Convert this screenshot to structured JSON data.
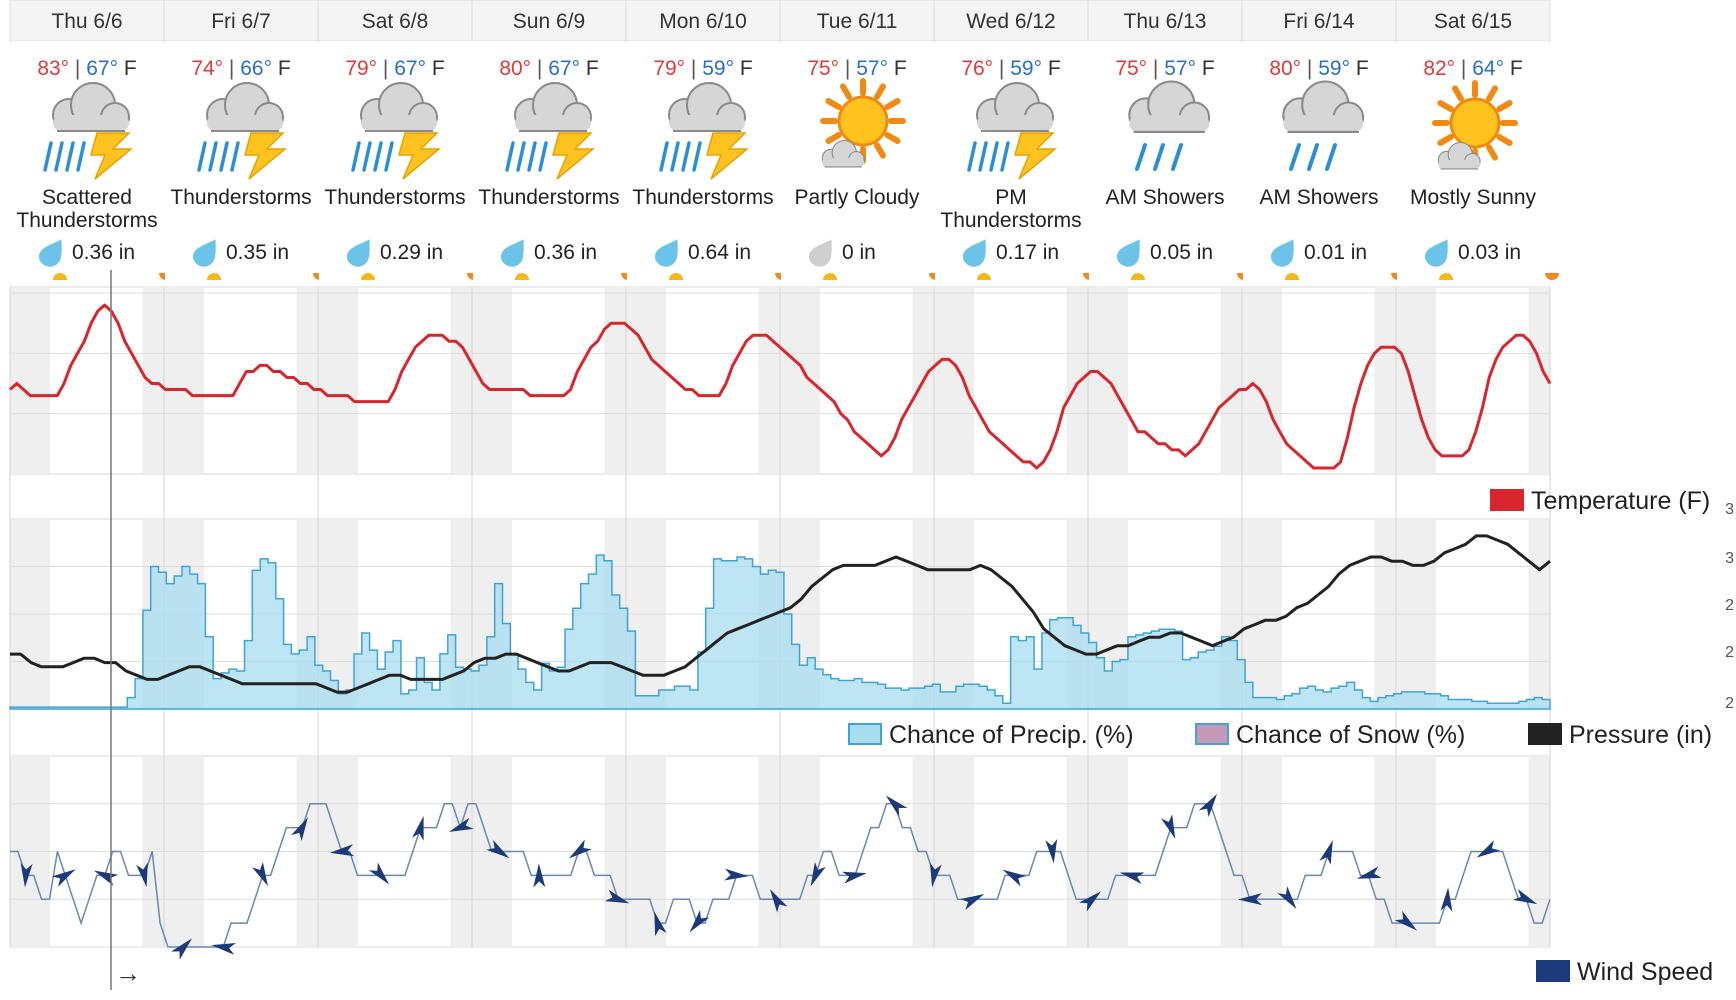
{
  "days": [
    {
      "label": "Thu 6/6",
      "hi": "83°",
      "lo": "67°",
      "unit": "F",
      "cond": [
        "Scattered",
        "Thunderstorms"
      ],
      "icon": "thunderstorm-icon",
      "precip": "0.36 in",
      "drop": "blue"
    },
    {
      "label": "Fri 6/7",
      "hi": "74°",
      "lo": "66°",
      "unit": "F",
      "cond": [
        "Thunderstorms"
      ],
      "icon": "thunderstorm-icon",
      "precip": "0.35 in",
      "drop": "blue"
    },
    {
      "label": "Sat 6/8",
      "hi": "79°",
      "lo": "67°",
      "unit": "F",
      "cond": [
        "Thunderstorms"
      ],
      "icon": "thunderstorm-icon",
      "precip": "0.29 in",
      "drop": "blue"
    },
    {
      "label": "Sun 6/9",
      "hi": "80°",
      "lo": "67°",
      "unit": "F",
      "cond": [
        "Thunderstorms"
      ],
      "icon": "thunderstorm-icon",
      "precip": "0.36 in",
      "drop": "blue"
    },
    {
      "label": "Mon 6/10",
      "hi": "79°",
      "lo": "59°",
      "unit": "F",
      "cond": [
        "Thunderstorms"
      ],
      "icon": "thunderstorm-icon",
      "precip": "0.64 in",
      "drop": "blue"
    },
    {
      "label": "Tue 6/11",
      "hi": "75°",
      "lo": "57°",
      "unit": "F",
      "cond": [
        "Partly Cloudy"
      ],
      "icon": "partly-cloudy-icon",
      "precip": "0 in",
      "drop": "gray"
    },
    {
      "label": "Wed 6/12",
      "hi": "76°",
      "lo": "59°",
      "unit": "F",
      "cond": [
        "PM",
        "Thunderstorms"
      ],
      "icon": "thunderstorm-icon",
      "precip": "0.17 in",
      "drop": "blue"
    },
    {
      "label": "Thu 6/13",
      "hi": "75°",
      "lo": "57°",
      "unit": "F",
      "cond": [
        "AM Showers"
      ],
      "icon": "showers-icon",
      "precip": "0.05 in",
      "drop": "blue"
    },
    {
      "label": "Fri 6/14",
      "hi": "80°",
      "lo": "59°",
      "unit": "F",
      "cond": [
        "AM Showers"
      ],
      "icon": "showers-icon",
      "precip": "0.01 in",
      "drop": "blue"
    },
    {
      "label": "Sat 6/15",
      "hi": "82°",
      "lo": "64°",
      "unit": "F",
      "cond": [
        "Mostly Sunny"
      ],
      "icon": "mostly-sunny-icon",
      "precip": "0.03 in",
      "drop": "blue"
    }
  ],
  "legends": {
    "temperature": "Temperature (F)",
    "precip": "Chance of Precip. (%)",
    "snow": "Chance of Snow (%)",
    "pressure": "Pressure (in)",
    "wind": "Wind Speed"
  },
  "colors": {
    "temperature": "#d9262c",
    "precip_fill": "#a8dcef",
    "precip_line": "#3fa3d9",
    "snow": "#c69ab6",
    "pressure": "#222222",
    "wind": "#1c3a7a",
    "hi": "#e03a3a",
    "lo": "#2a6fc9"
  },
  "cursor_arrow": "→",
  "chart_data": [
    {
      "type": "line",
      "title": "",
      "series": [
        {
          "name": "Temperature (F)",
          "values": [
            69,
            70,
            69,
            68,
            68,
            68,
            68,
            68,
            70,
            73,
            75,
            77,
            80,
            82,
            83,
            82,
            80,
            77,
            75,
            73,
            71,
            70,
            70,
            69,
            69,
            69,
            69,
            68,
            68,
            68,
            68,
            68,
            68,
            68,
            70,
            72,
            72,
            73,
            73,
            72,
            72,
            71,
            71,
            70,
            70,
            69,
            69,
            68,
            68,
            68,
            68,
            67,
            67,
            67,
            67,
            67,
            67,
            69,
            72,
            74,
            76,
            77,
            78,
            78,
            78,
            77,
            77,
            76,
            74,
            72,
            70,
            69,
            69,
            69,
            69,
            69,
            69,
            68,
            68,
            68,
            68,
            68,
            68,
            69,
            72,
            74,
            76,
            77,
            79,
            80,
            80,
            80,
            79,
            78,
            76,
            74,
            73,
            72,
            71,
            70,
            69,
            69,
            68,
            68,
            68,
            68,
            70,
            73,
            75,
            77,
            78,
            78,
            78,
            77,
            76,
            75,
            74,
            73,
            71,
            70,
            69,
            68,
            67,
            65,
            64,
            62,
            61,
            60,
            59,
            58,
            59,
            61,
            64,
            66,
            68,
            70,
            72,
            73,
            74,
            74,
            73,
            71,
            68,
            66,
            64,
            62,
            61,
            60,
            59,
            58,
            57,
            57,
            56,
            57,
            59,
            62,
            66,
            68,
            70,
            71,
            72,
            72,
            71,
            70,
            68,
            66,
            64,
            62,
            62,
            61,
            60,
            60,
            59,
            59,
            58,
            59,
            60,
            62,
            64,
            66,
            67,
            68,
            69,
            69,
            70,
            69,
            67,
            64,
            62,
            60,
            59,
            58,
            57,
            56,
            56,
            56,
            56,
            57,
            61,
            66,
            70,
            73,
            75,
            76,
            76,
            76,
            75,
            72,
            68,
            64,
            61,
            59,
            58,
            58,
            58,
            58,
            59,
            62,
            66,
            71,
            74,
            76,
            77,
            78,
            78,
            77,
            75,
            72,
            70
          ]
        }
      ],
      "ylim": [
        55,
        86
      ]
    },
    {
      "type": "area",
      "title": "",
      "series": [
        {
          "name": "Chance of Precip. (%)",
          "values": [
            1,
            1,
            1,
            1,
            1,
            1,
            1,
            1,
            1,
            1,
            1,
            1,
            1,
            1,
            1,
            6,
            16,
            52,
            75,
            72,
            66,
            70,
            75,
            71,
            66,
            38,
            16,
            19,
            21,
            20,
            36,
            73,
            79,
            77,
            58,
            34,
            29,
            31,
            38,
            23,
            20,
            15,
            8,
            10,
            29,
            40,
            31,
            21,
            30,
            36,
            8,
            10,
            27,
            14,
            10,
            29,
            39,
            22,
            21,
            20,
            23,
            38,
            66,
            45,
            29,
            21,
            14,
            10,
            24,
            20,
            22,
            42,
            53,
            66,
            71,
            81,
            78,
            60,
            53,
            41,
            7,
            7,
            7,
            10,
            10,
            12,
            12,
            10,
            30,
            53,
            79,
            78,
            78,
            80,
            79,
            75,
            71,
            73,
            72,
            50,
            34,
            23,
            27,
            21,
            18,
            16,
            15,
            15,
            16,
            14,
            14,
            13,
            11,
            11,
            10,
            11,
            11,
            12,
            13,
            9,
            9,
            12,
            13,
            13,
            12,
            10,
            7,
            3,
            38,
            36,
            38,
            21,
            40,
            47,
            48,
            48,
            44,
            40,
            35,
            27,
            20,
            25,
            26,
            38,
            39,
            40,
            41,
            42,
            42,
            41,
            26,
            27,
            30,
            31,
            33,
            38,
            36,
            26,
            14,
            6,
            6,
            6,
            5,
            7,
            8,
            11,
            12,
            10,
            9,
            11,
            12,
            14,
            10,
            6,
            4,
            6,
            7,
            8,
            9,
            9,
            9,
            8,
            8,
            7,
            5,
            5,
            5,
            4,
            4,
            3,
            3,
            3,
            3,
            4,
            5,
            6,
            5
          ]
        },
        {
          "name": "Chance of Snow (%)",
          "values": []
        },
        {
          "name": "Pressure (in)",
          "values": [
            29.93,
            29.93,
            29.91,
            29.9,
            29.9,
            29.9,
            29.91,
            29.92,
            29.92,
            29.91,
            29.91,
            29.89,
            29.88,
            29.87,
            29.87,
            29.88,
            29.89,
            29.9,
            29.9,
            29.89,
            29.88,
            29.87,
            29.86,
            29.86,
            29.86,
            29.86,
            29.86,
            29.86,
            29.86,
            29.86,
            29.85,
            29.84,
            29.84,
            29.85,
            29.86,
            29.87,
            29.88,
            29.88,
            29.87,
            29.87,
            29.87,
            29.87,
            29.88,
            29.89,
            29.91,
            29.92,
            29.92,
            29.93,
            29.93,
            29.92,
            29.91,
            29.9,
            29.89,
            29.89,
            29.9,
            29.91,
            29.91,
            29.91,
            29.9,
            29.89,
            29.88,
            29.88,
            29.88,
            29.89,
            29.9,
            29.92,
            29.94,
            29.96,
            29.98,
            29.99,
            30.0,
            30.01,
            30.02,
            30.03,
            30.04,
            30.06,
            30.09,
            30.11,
            30.13,
            30.14,
            30.14,
            30.14,
            30.14,
            30.15,
            30.16,
            30.15,
            30.14,
            30.13,
            30.13,
            30.13,
            30.13,
            30.13,
            30.14,
            30.13,
            30.11,
            30.09,
            30.06,
            30.03,
            29.99,
            29.97,
            29.95,
            29.94,
            29.93,
            29.93,
            29.94,
            29.95,
            29.95,
            29.96,
            29.97,
            29.97,
            29.98,
            29.98,
            29.97,
            29.96,
            29.95,
            29.96,
            29.97,
            29.99,
            30.0,
            30.01,
            30.01,
            30.02,
            30.04,
            30.05,
            30.07,
            30.09,
            30.12,
            30.14,
            30.15,
            30.16,
            30.16,
            30.15,
            30.15,
            30.14,
            30.14,
            30.15,
            30.17,
            30.18,
            30.19,
            30.21,
            30.21,
            30.2,
            30.19,
            30.17,
            30.15,
            30.13,
            30.15
          ]
        }
      ],
      "ylim": [
        0,
        100
      ]
    },
    {
      "type": "line",
      "title": "",
      "series": [
        {
          "name": "Wind Speed",
          "values": [
            4,
            4,
            3,
            3,
            2,
            2,
            4,
            3,
            2,
            1,
            2,
            3,
            3,
            4,
            4,
            3,
            3,
            3,
            4,
            1,
            0,
            0,
            0,
            0,
            0,
            0,
            0,
            0,
            1,
            1,
            1,
            2,
            3,
            3,
            4,
            5,
            5,
            5,
            6,
            6,
            6,
            5,
            4,
            4,
            3,
            3,
            3,
            3,
            3,
            3,
            3,
            4,
            5,
            5,
            5,
            6,
            6,
            5,
            6,
            6,
            5,
            4,
            4,
            4,
            4,
            4,
            3,
            3,
            3,
            3,
            3,
            3,
            4,
            4,
            3,
            3,
            3,
            2,
            2,
            2,
            2,
            2,
            1,
            1,
            2,
            2,
            2,
            1,
            1,
            2,
            2,
            2,
            3,
            3,
            3,
            2,
            2,
            2,
            2,
            2,
            2,
            3,
            3,
            4,
            4,
            3,
            3,
            3,
            4,
            5,
            5,
            6,
            6,
            5,
            5,
            4,
            4,
            3,
            3,
            3,
            2,
            2,
            2,
            2,
            2,
            2,
            3,
            3,
            3,
            3,
            4,
            4,
            4,
            4,
            3,
            2,
            2,
            2,
            2,
            2,
            3,
            3,
            3,
            3,
            3,
            3,
            4,
            5,
            5,
            5,
            6,
            6,
            6,
            5,
            4,
            3,
            3,
            2,
            2,
            2,
            2,
            2,
            2,
            2,
            3,
            3,
            3,
            4,
            4,
            4,
            4,
            3,
            3,
            2,
            2,
            1,
            1,
            1,
            1,
            1,
            1,
            1,
            2,
            2,
            3,
            4,
            4,
            4,
            4,
            4,
            3,
            2,
            2,
            1,
            1,
            2
          ]
        }
      ],
      "ylim": [
        0,
        8
      ]
    }
  ]
}
